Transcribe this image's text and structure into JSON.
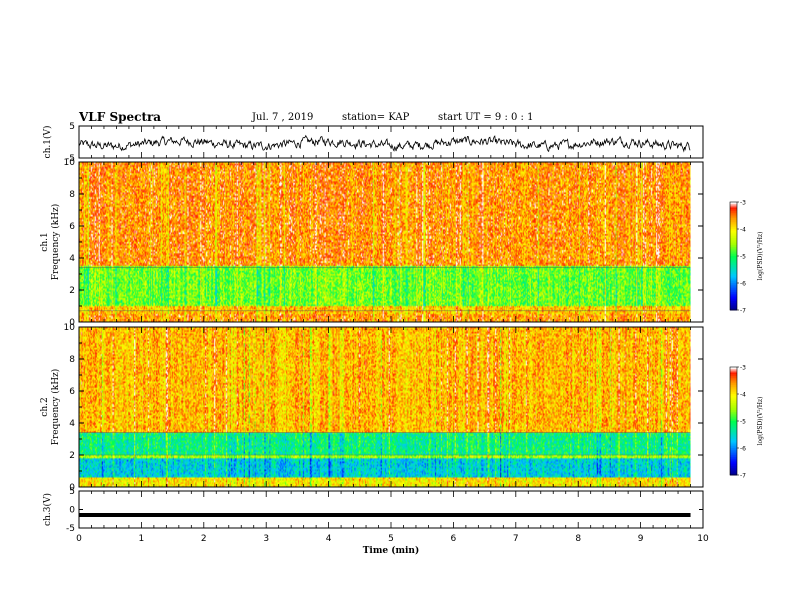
{
  "header": {
    "title": "VLF Spectra",
    "date": "Jul. 7 , 2019",
    "station": "station= KAP",
    "start": "start UT = 9 : 0 : 1"
  },
  "chart_data": [
    {
      "type": "line",
      "name": "ch1-waveform",
      "ylabel": "ch.1(V)",
      "ylim": [
        -5,
        5
      ],
      "yticks": [
        "5",
        "-5"
      ],
      "xlim": [
        0,
        10
      ],
      "description_range_v": [
        -3,
        3
      ]
    },
    {
      "type": "heatmap",
      "name": "ch1-spectrogram",
      "ylabel": "ch.1\nFrequency (kHz)",
      "ylim": [
        0,
        10
      ],
      "yticks": [
        "0",
        "2",
        "4",
        "6",
        "8",
        "10"
      ],
      "xlim": [
        0,
        9.8
      ],
      "colorbar": {
        "label": "log(PSD)(V²/Hz)",
        "range": [
          -7,
          -3
        ],
        "ticks": [
          "-3",
          "-4",
          "-5",
          "-6",
          "-7"
        ]
      }
    },
    {
      "type": "heatmap",
      "name": "ch2-spectrogram",
      "ylabel": "ch.2\nFrequency (kHz)",
      "ylim": [
        0,
        10
      ],
      "yticks": [
        "0",
        "2",
        "4",
        "6",
        "8",
        "10"
      ],
      "xlim": [
        0,
        9.8
      ],
      "colorbar": {
        "label": "log(PSD)(V²/Hz)",
        "range": [
          -7,
          -3
        ],
        "ticks": [
          "-3",
          "-4",
          "-5",
          "-6",
          "-7"
        ]
      }
    },
    {
      "type": "line",
      "name": "ch3-waveform",
      "ylabel": "ch.3(V)",
      "ylim": [
        -5,
        5
      ],
      "yticks": [
        "5",
        "0",
        "-5"
      ],
      "xlabel": "Time (min)",
      "xlim": [
        0,
        10
      ],
      "xticks": [
        "0",
        "1",
        "2",
        "3",
        "4",
        "5",
        "6",
        "7",
        "8",
        "9",
        "10"
      ],
      "constant_value_v": -1.5
    }
  ]
}
